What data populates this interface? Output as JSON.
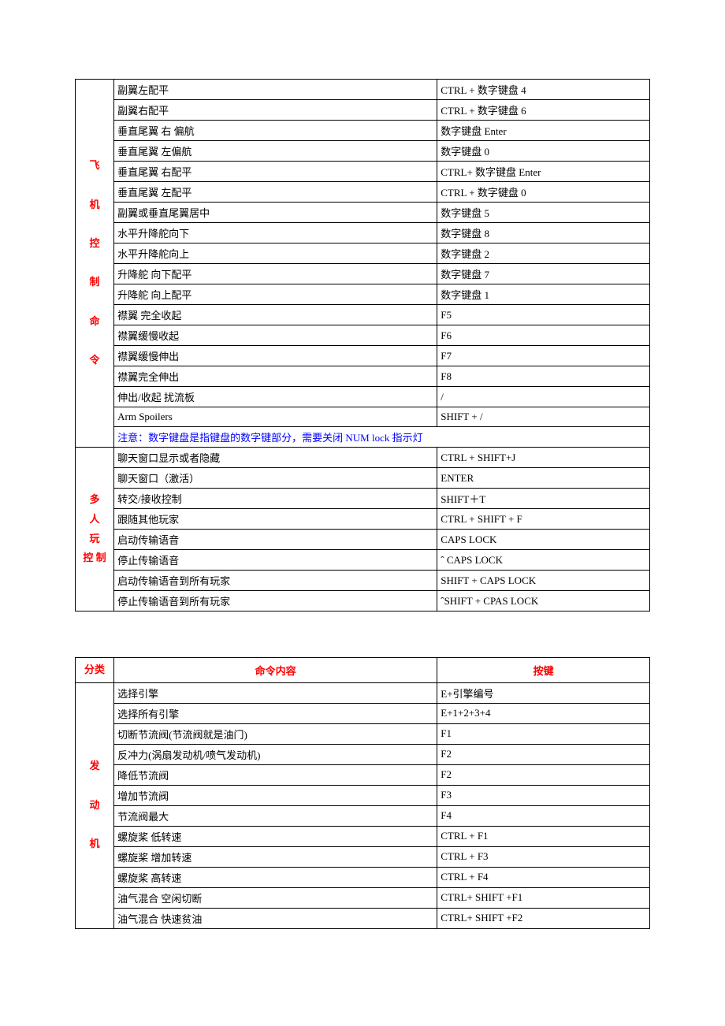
{
  "table1": {
    "sections": [
      {
        "category": "飞\n\n机\n\n控\n\n制\n\n命\n\n令",
        "rows": [
          {
            "cmd": "副翼左配平",
            "key": "CTRL + 数字键盘 4"
          },
          {
            "cmd": "副翼右配平",
            "key": "CTRL + 数字键盘 6"
          },
          {
            "cmd": "垂直尾翼 右 偏航",
            "key": "数字键盘 Enter"
          },
          {
            "cmd": "垂直尾翼 左偏航",
            "key": "数字键盘 0"
          },
          {
            "cmd": "垂直尾翼 右配平",
            "key": "CTRL+ 数字键盘 Enter"
          },
          {
            "cmd": "垂直尾翼 左配平",
            "key": "CTRL + 数字键盘 0"
          },
          {
            "cmd": "副翼或垂直尾翼居中",
            "key": "数字键盘 5"
          },
          {
            "cmd": "水平升降舵向下",
            "key": "数字键盘 8"
          },
          {
            "cmd": "水平升降舵向上",
            "key": "数字键盘 2"
          },
          {
            "cmd": "升降舵 向下配平",
            "key": "数字键盘 7"
          },
          {
            "cmd": "升降舵 向上配平",
            "key": "数字键盘 1"
          },
          {
            "cmd": "襟翼 完全收起",
            "key": "F5"
          },
          {
            "cmd": "襟翼缓慢收起",
            "key": "F6"
          },
          {
            "cmd": "襟翼缓慢伸出",
            "key": "F7"
          },
          {
            "cmd": "襟翼完全伸出",
            "key": "F8"
          },
          {
            "cmd": "伸出/收起 扰流板",
            "key": "/"
          },
          {
            "cmd": "Arm Spoilers",
            "key": "SHIFT + /"
          }
        ],
        "note": "注意：数字键盘是指键盘的数字键部分，需要关闭 NUM lock 指示灯"
      },
      {
        "category": "多\n人\n玩\n控 制",
        "rows": [
          {
            "cmd": "聊天窗口显示或者隐藏",
            "key": "CTRL + SHIFT+J"
          },
          {
            "cmd": "聊天窗口（激活）",
            "key": "ENTER"
          },
          {
            "cmd": "转交/接收控制",
            "key": "SHIFT＋T"
          },
          {
            "cmd": "跟随其他玩家",
            "key": "CTRL + SHIFT + F"
          },
          {
            "cmd": "启动传输语音",
            "key": "CAPS LOCK"
          },
          {
            "cmd": "停止传输语音",
            "key": "ˆ CAPS LOCK"
          },
          {
            "cmd": "启动传输语音到所有玩家",
            "key": "SHIFT + CAPS LOCK"
          },
          {
            "cmd": "停止传输语音到所有玩家",
            "key": "ˆSHIFT + CPAS LOCK"
          }
        ]
      }
    ]
  },
  "table2": {
    "headers": {
      "category": "分类",
      "cmd": "命令内容",
      "key": "按键"
    },
    "sections": [
      {
        "category": "发\n\n动\n\n机",
        "rows": [
          {
            "cmd": "选择引擎",
            "key": "E+引擎编号"
          },
          {
            "cmd": "选择所有引擎",
            "key": "E+1+2+3+4"
          },
          {
            "cmd": "切断节流阀(节流阀就是油门)",
            "key": "F1"
          },
          {
            "cmd": "反冲力(涡扇发动机/喷气发动机)",
            "key": "F2"
          },
          {
            "cmd": " 降低节流阀",
            "key": "F2"
          },
          {
            "cmd": "增加节流阀",
            "key": "F3"
          },
          {
            "cmd": "节流阀最大",
            "key": "F4"
          },
          {
            "cmd": "螺旋桨 低转速",
            "key": "CTRL + F1"
          },
          {
            "cmd": "螺旋桨 增加转速",
            "key": "CTRL + F3"
          },
          {
            "cmd": "螺旋桨 高转速",
            "key": "CTRL + F4"
          },
          {
            "cmd": "油气混合 空闲切断",
            "key": "CTRL+ SHIFT +F1"
          },
          {
            "cmd": "油气混合 快速贫油",
            "key": "CTRL+ SHIFT +F2"
          }
        ]
      }
    ]
  }
}
